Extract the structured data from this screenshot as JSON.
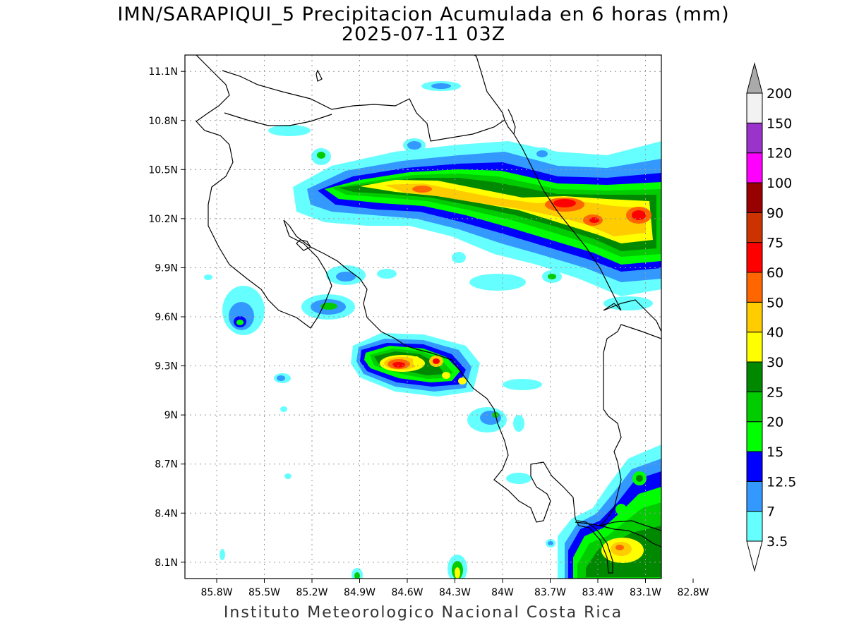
{
  "title": {
    "line1": "IMN/SARAPIQUI_5 Precipitacion Acumulada en 6 horas (mm)",
    "line2": "2025-07-11 03Z"
  },
  "footer": "Instituto Meteorologico Nacional Costa Rica",
  "map": {
    "lon_range": [
      -86.0,
      -83.0
    ],
    "lat_range": [
      8.0,
      11.2
    ],
    "lat_ticks": [
      {
        "value": 11.1,
        "label": "11.1N"
      },
      {
        "value": 10.8,
        "label": "10.8N"
      },
      {
        "value": 10.5,
        "label": "10.5N"
      },
      {
        "value": 10.2,
        "label": "10.2N"
      },
      {
        "value": 9.9,
        "label": "9.9N"
      },
      {
        "value": 9.6,
        "label": "9.6N"
      },
      {
        "value": 9.3,
        "label": "9.3N"
      },
      {
        "value": 9.0,
        "label": "9N"
      },
      {
        "value": 8.7,
        "label": "8.7N"
      },
      {
        "value": 8.4,
        "label": "8.4N"
      },
      {
        "value": 8.1,
        "label": "8.1N"
      }
    ],
    "lon_ticks": [
      {
        "value": -85.8,
        "label": "85.8W"
      },
      {
        "value": -85.5,
        "label": "85.5W"
      },
      {
        "value": -85.2,
        "label": "85.2W"
      },
      {
        "value": -84.9,
        "label": "84.9W"
      },
      {
        "value": -84.6,
        "label": "84.6W"
      },
      {
        "value": -84.3,
        "label": "84.3W"
      },
      {
        "value": -84.0,
        "label": "84W"
      },
      {
        "value": -83.7,
        "label": "83.7W"
      },
      {
        "value": -83.4,
        "label": "83.4W"
      },
      {
        "value": -83.1,
        "label": "83.1W"
      },
      {
        "value": -82.8,
        "label": "82.8W"
      }
    ]
  },
  "colorbar": {
    "levels": [
      {
        "label": "3.5",
        "color": "#ffffff"
      },
      {
        "label": "7",
        "color": "#66ffff"
      },
      {
        "label": "12.5",
        "color": "#3399ff"
      },
      {
        "label": "15",
        "color": "#0000ff"
      },
      {
        "label": "20",
        "color": "#00ff00"
      },
      {
        "label": "25",
        "color": "#00cc00"
      },
      {
        "label": "30",
        "color": "#008800"
      },
      {
        "label": "40",
        "color": "#ffff00"
      },
      {
        "label": "50",
        "color": "#ffcc00"
      },
      {
        "label": "60",
        "color": "#ff6600"
      },
      {
        "label": "75",
        "color": "#ff0000"
      },
      {
        "label": "90",
        "color": "#cc3300"
      },
      {
        "label": "100",
        "color": "#990000"
      },
      {
        "label": "120",
        "color": "#ff00ff"
      },
      {
        "label": "150",
        "color": "#9933cc"
      },
      {
        "label": "200",
        "color": "#f2f2f2"
      }
    ],
    "top_color": "#aaaaaa",
    "bottom_color": "#ffffff"
  }
}
